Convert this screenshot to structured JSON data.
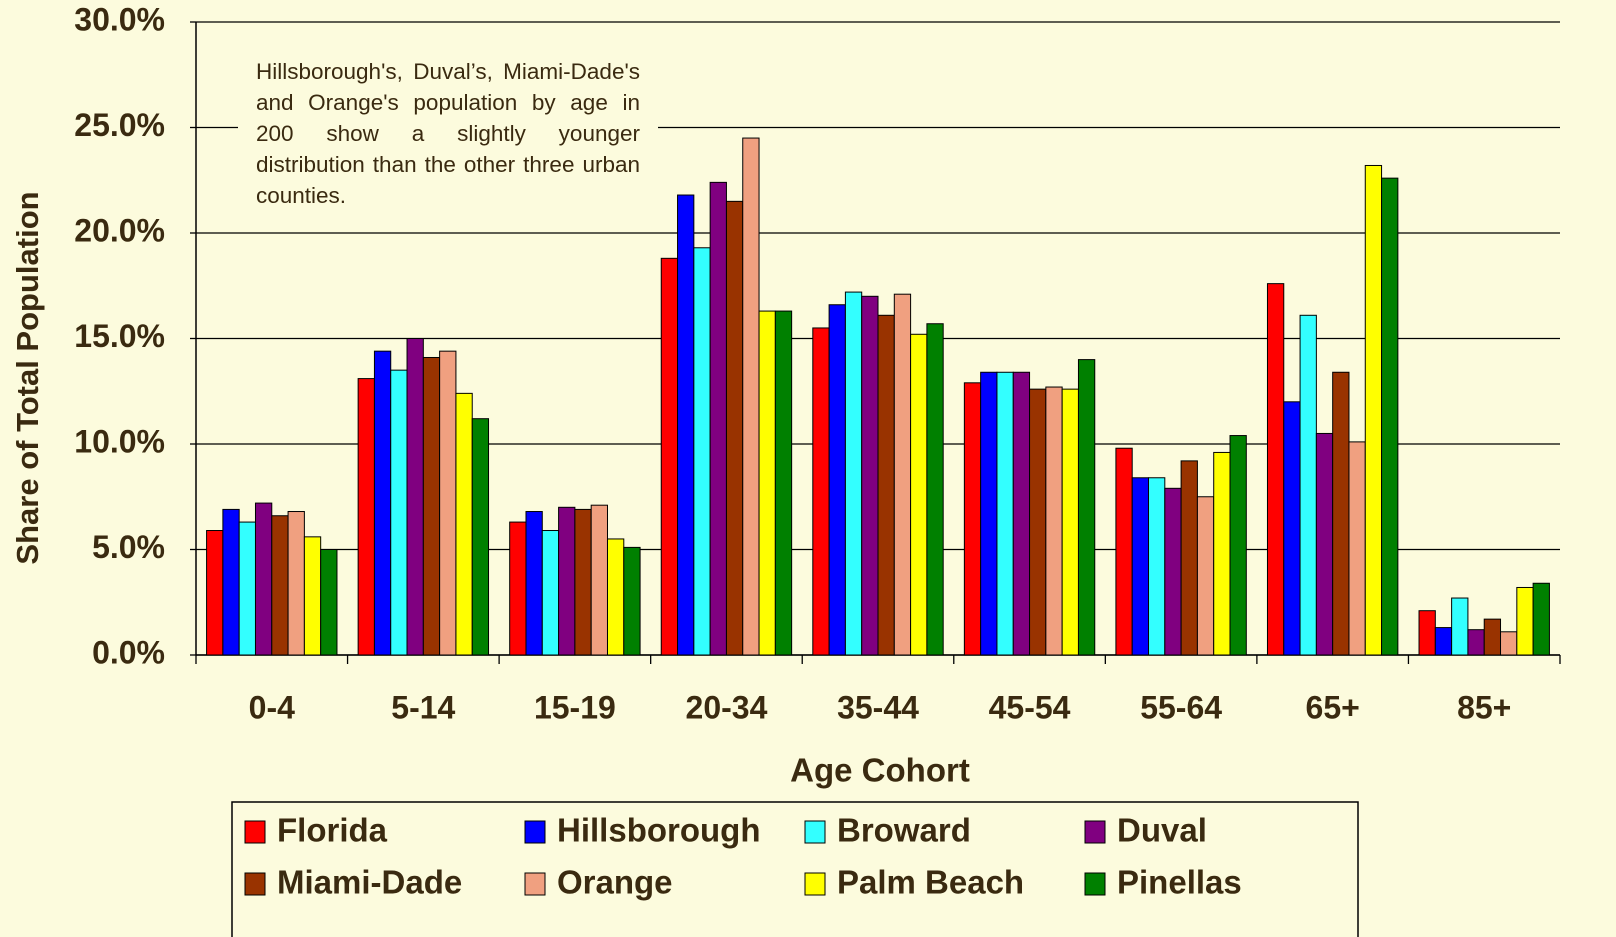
{
  "chart_data": {
    "type": "bar",
    "y_label": "Share of Total Population",
    "x_label": "Age Cohort",
    "annotation": "Hillsborough's, Duval’s, Miami-Dade's and Orange's population by age in 200 show a slightly younger distribution than the other three urban counties.",
    "categories": [
      "0-4",
      "5-14",
      "15-19",
      "20-34",
      "35-44",
      "45-54",
      "55-64",
      "65+",
      "85+"
    ],
    "series": [
      {
        "name": "Florida",
        "color": "#ff0000",
        "values": [
          5.9,
          13.1,
          6.3,
          18.8,
          15.5,
          12.9,
          9.8,
          17.6,
          2.1
        ]
      },
      {
        "name": "Hillsborough",
        "color": "#0000ff",
        "values": [
          6.9,
          14.4,
          6.8,
          21.8,
          16.6,
          13.4,
          8.4,
          12.0,
          1.3
        ]
      },
      {
        "name": "Broward",
        "color": "#33ffff",
        "values": [
          6.3,
          13.5,
          5.9,
          19.3,
          17.2,
          13.4,
          8.4,
          16.1,
          2.7
        ]
      },
      {
        "name": "Duval",
        "color": "#800080",
        "values": [
          7.2,
          15.0,
          7.0,
          22.4,
          17.0,
          13.4,
          7.9,
          10.5,
          1.2
        ]
      },
      {
        "name": "Miami-Dade",
        "color": "#993300",
        "values": [
          6.6,
          14.1,
          6.9,
          21.5,
          16.1,
          12.6,
          9.2,
          13.4,
          1.7
        ]
      },
      {
        "name": "Orange",
        "color": "#f0a080",
        "values": [
          6.8,
          14.4,
          7.1,
          24.5,
          17.1,
          12.7,
          7.5,
          10.1,
          1.1
        ]
      },
      {
        "name": "Palm Beach",
        "color": "#ffff00",
        "values": [
          5.6,
          12.4,
          5.5,
          16.3,
          15.2,
          12.6,
          9.6,
          23.2,
          3.2
        ]
      },
      {
        "name": "Pinellas",
        "color": "#008000",
        "values": [
          5.0,
          11.2,
          5.1,
          16.3,
          15.7,
          14.0,
          10.4,
          22.6,
          3.4
        ]
      }
    ],
    "ylim": [
      0,
      30
    ],
    "yticks": [
      {
        "value": 0,
        "label": "0.0%"
      },
      {
        "value": 5,
        "label": "5.0%"
      },
      {
        "value": 10,
        "label": "10.0%"
      },
      {
        "value": 15,
        "label": "15.0%"
      },
      {
        "value": 20,
        "label": "20.0%"
      },
      {
        "value": 25,
        "label": "25.0%"
      },
      {
        "value": 30,
        "label": "30.0%"
      }
    ],
    "grid": true,
    "legend": "bottom"
  }
}
